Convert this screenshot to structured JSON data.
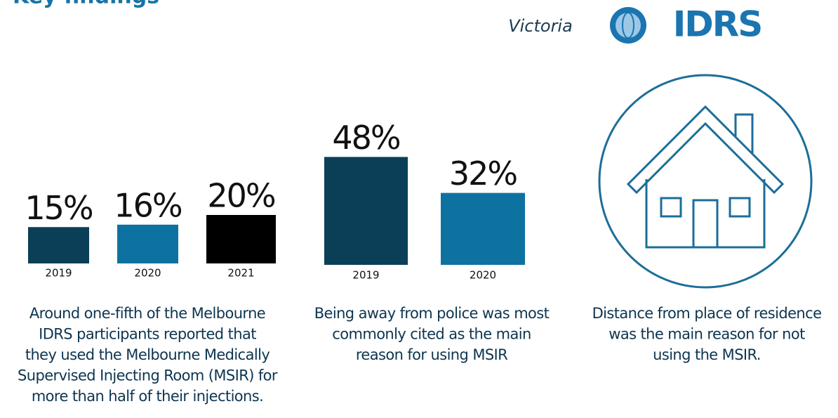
{
  "header": {
    "title": "Key findings",
    "region": "Victoria",
    "logo": "IDRS"
  },
  "chart_data": [
    {
      "type": "bar",
      "categories": [
        "2019",
        "2020",
        "2021"
      ],
      "values": [
        15,
        16,
        20
      ],
      "value_labels": [
        "15%",
        "16%",
        "20%"
      ],
      "colors": [
        "#0b3f57",
        "#0e72a0",
        "#000000"
      ]
    },
    {
      "type": "bar",
      "categories": [
        "2019",
        "2020"
      ],
      "values": [
        48,
        32
      ],
      "value_labels": [
        "48%",
        "32%"
      ],
      "colors": [
        "#0b3f57",
        "#0e72a0"
      ]
    }
  ],
  "captions": [
    {
      "lines": [
        "Around one-fifth of the Melbourne",
        "IDRS participants reported that",
        "they used the Melbourne Medically",
        "Supervised Injecting Room (MSIR) for",
        "more than half of their injections."
      ]
    },
    {
      "lines": [
        "Being away from police was most",
        "commonly cited as the main",
        "reason for using MSIR"
      ]
    },
    {
      "lines": [
        "Distance from place of residence",
        "was the main reason for not",
        "using the MSIR."
      ]
    }
  ]
}
